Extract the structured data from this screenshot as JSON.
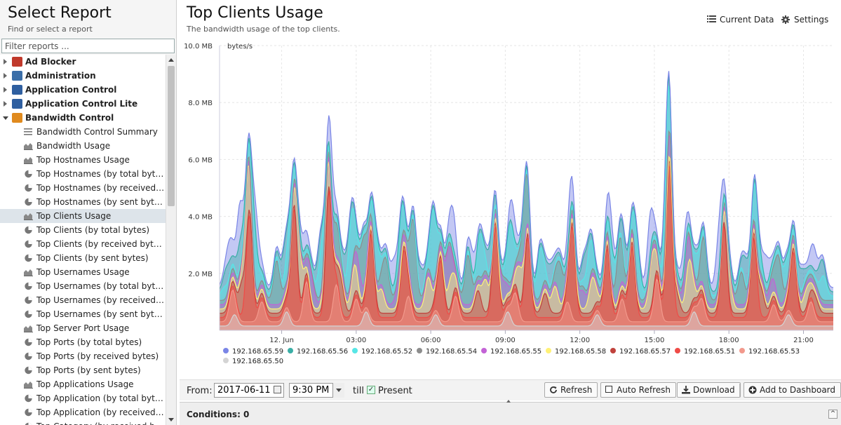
{
  "sidebar": {
    "title": "Select Report",
    "subtitle": "Find or select a report",
    "filter_placeholder": "Filter reports ...",
    "categories": [
      {
        "label": "Ad Blocker",
        "icon": "ad-blocker-icon",
        "color": "#c0392b"
      },
      {
        "label": "Administration",
        "icon": "administration-icon",
        "color": "#3b6ea8"
      },
      {
        "label": "Application Control",
        "icon": "application-control-icon",
        "color": "#2f5fa0"
      },
      {
        "label": "Application Control Lite",
        "icon": "application-control-lite-icon",
        "color": "#2f5fa0"
      },
      {
        "label": "Bandwidth Control",
        "icon": "bandwidth-control-icon",
        "color": "#e08a1e"
      }
    ],
    "items": [
      {
        "label": "Bandwidth Control Summary",
        "icon": "summary-list-icon"
      },
      {
        "label": "Bandwidth Usage",
        "icon": "area-chart-icon"
      },
      {
        "label": "Top Hostnames Usage",
        "icon": "area-chart-icon"
      },
      {
        "label": "Top Hostnames (by total bytes)",
        "icon": "pie-chart-icon"
      },
      {
        "label": "Top Hostnames (by received bytes)",
        "icon": "pie-chart-icon"
      },
      {
        "label": "Top Hostnames (by sent bytes)",
        "icon": "pie-chart-icon"
      },
      {
        "label": "Top Clients Usage",
        "icon": "area-chart-icon"
      },
      {
        "label": "Top Clients (by total bytes)",
        "icon": "pie-chart-icon"
      },
      {
        "label": "Top Clients (by received bytes)",
        "icon": "pie-chart-icon"
      },
      {
        "label": "Top Clients (by sent bytes)",
        "icon": "pie-chart-icon"
      },
      {
        "label": "Top Usernames Usage",
        "icon": "area-chart-icon"
      },
      {
        "label": "Top Usernames (by total bytes)",
        "icon": "pie-chart-icon"
      },
      {
        "label": "Top Usernames (by received bytes)",
        "icon": "pie-chart-icon"
      },
      {
        "label": "Top Usernames (by sent bytes)",
        "icon": "pie-chart-icon"
      },
      {
        "label": "Top Server Port Usage",
        "icon": "area-chart-icon"
      },
      {
        "label": "Top Ports (by total bytes)",
        "icon": "pie-chart-icon"
      },
      {
        "label": "Top Ports (by received bytes)",
        "icon": "pie-chart-icon"
      },
      {
        "label": "Top Ports (by sent bytes)",
        "icon": "pie-chart-icon"
      },
      {
        "label": "Top Applications Usage",
        "icon": "area-chart-icon"
      },
      {
        "label": "Top Application (by total bytes)",
        "icon": "pie-chart-icon"
      },
      {
        "label": "Top Application (by received bytes)",
        "icon": "pie-chart-icon"
      },
      {
        "label": "Top Category (by received bytes)",
        "icon": "pie-chart-icon"
      }
    ],
    "selected_item": "Top Clients Usage"
  },
  "header": {
    "title": "Top Clients Usage",
    "subtitle": "The bandwidth usage of the top clients.",
    "current_data_label": "Current Data",
    "settings_label": "Settings"
  },
  "controls": {
    "from_label": "From:",
    "date_value": "2017-06-11",
    "time_value": "9:30 PM",
    "till_label": "till",
    "present_label": "Present",
    "present_checked": true,
    "refresh_label": "Refresh",
    "auto_refresh_label": "Auto Refresh",
    "download_label": "Download",
    "add_dashboard_label": "Add to Dashboard"
  },
  "conditions": {
    "label": "Conditions: 0"
  },
  "chart_data": {
    "type": "area",
    "stacked": true,
    "ylabel": "bytes/s",
    "ylim": [
      0,
      10
    ],
    "y_ticks": [
      {
        "value": 2,
        "label": "2.0 MB"
      },
      {
        "value": 4,
        "label": "4.0 MB"
      },
      {
        "value": 6,
        "label": "6.0 MB"
      },
      {
        "value": 8,
        "label": "8.0 MB"
      },
      {
        "value": 10,
        "label": "10.0 MB"
      }
    ],
    "x_ticks": [
      {
        "t": 0,
        "label": "12. Jun"
      },
      {
        "t": 3,
        "label": "03:00"
      },
      {
        "t": 6,
        "label": "06:00"
      },
      {
        "t": 9,
        "label": "09:00"
      },
      {
        "t": 12,
        "label": "12:00"
      },
      {
        "t": 15,
        "label": "15:00"
      },
      {
        "t": 18,
        "label": "18:00"
      },
      {
        "t": 21,
        "label": "21:00"
      }
    ],
    "x_range_hours": [
      -2.5,
      22.2
    ],
    "grid": true,
    "legend_position": "bottom",
    "series": [
      {
        "name": "192.168.65.59",
        "color": "#7a85e6",
        "peaks": [
          [
            -2.1,
            0.6
          ],
          [
            -1.7,
            1.2
          ],
          [
            -1.0,
            0.9
          ],
          [
            0.9,
            0.5
          ],
          [
            2.0,
            1.1
          ],
          [
            4.5,
            0.8
          ],
          [
            6.9,
            1.2
          ],
          [
            7.7,
            0.6
          ],
          [
            9.3,
            0.7
          ],
          [
            11.6,
            0.9
          ],
          [
            13.2,
            0.8
          ],
          [
            14.8,
            1.3
          ],
          [
            16.2,
            0.7
          ],
          [
            17.6,
            1.6
          ],
          [
            19.5,
            0.8
          ],
          [
            21.4,
            0.7
          ]
        ]
      },
      {
        "name": "192.168.65.56",
        "color": "#3aaea6",
        "peaks": [
          [
            -2.2,
            0.5
          ],
          [
            -1.7,
            0.8
          ],
          [
            0.1,
            0.9
          ],
          [
            1.5,
            0.6
          ],
          [
            2.6,
            0.7
          ],
          [
            5.6,
            0.7
          ],
          [
            8.4,
            0.8
          ],
          [
            10.8,
            0.6
          ],
          [
            12.2,
            0.7
          ],
          [
            13.8,
            0.8
          ],
          [
            15.4,
            0.7
          ],
          [
            18.7,
            0.8
          ],
          [
            20.9,
            0.6
          ],
          [
            21.7,
            0.5
          ]
        ]
      },
      {
        "name": "192.168.65.52",
        "color": "#57e6e6",
        "peaks": [
          [
            -2.3,
            0.3
          ],
          [
            -1.1,
            1.8
          ],
          [
            0.3,
            1.3
          ],
          [
            1.6,
            1.4
          ],
          [
            2.8,
            2.0
          ],
          [
            3.8,
            1.4
          ],
          [
            4.8,
            1.0
          ],
          [
            6.1,
            2.4
          ],
          [
            8.0,
            1.4
          ],
          [
            9.2,
            1.9
          ],
          [
            10.4,
            1.5
          ],
          [
            12.4,
            1.1
          ],
          [
            13.3,
            0.9
          ],
          [
            14.3,
            1.5
          ],
          [
            15.5,
            1.8
          ],
          [
            16.7,
            0.8
          ],
          [
            19.1,
            1.4
          ],
          [
            20.3,
            0.8
          ],
          [
            21.8,
            0.7
          ]
        ]
      },
      {
        "name": "192.168.65.54",
        "color": "#8d8d8d",
        "peaks": [
          [
            -0.2,
            1.4
          ],
          [
            2.2,
            1.0
          ],
          [
            3.3,
            1.6
          ],
          [
            4.2,
            1.3
          ],
          [
            5.3,
            2.6
          ],
          [
            7.5,
            1.6
          ],
          [
            9.8,
            1.9
          ],
          [
            11.2,
            1.1
          ],
          [
            13.6,
            1.6
          ],
          [
            17.0,
            1.6
          ],
          [
            18.5,
            1.0
          ],
          [
            20.0,
            1.4
          ]
        ]
      },
      {
        "name": "192.168.65.55",
        "color": "#c363d6",
        "peaks": [
          [
            1.2,
            0.7
          ],
          [
            3.1,
            0.6
          ],
          [
            4.7,
            0.5
          ],
          [
            6.7,
            1.2
          ],
          [
            8.9,
            0.6
          ],
          [
            12.1,
            0.5
          ],
          [
            15.6,
            0.6
          ],
          [
            16.3,
            0.9
          ],
          [
            19.7,
            0.4
          ]
        ]
      },
      {
        "name": "192.168.65.58",
        "color": "#fff176",
        "peaks": [
          [
            -1.4,
            1.8
          ],
          [
            0.7,
            1.6
          ],
          [
            1.8,
            1.0
          ],
          [
            2.9,
            0.9
          ],
          [
            4.0,
            0.7
          ],
          [
            5.9,
            1.1
          ],
          [
            6.8,
            0.9
          ],
          [
            8.2,
            1.0
          ],
          [
            9.6,
            1.1
          ],
          [
            11.0,
            0.8
          ],
          [
            12.5,
            1.0
          ],
          [
            14.9,
            1.5
          ],
          [
            16.4,
            1.6
          ],
          [
            18.0,
            0.9
          ],
          [
            21.1,
            0.5
          ]
        ]
      },
      {
        "name": "192.168.65.57",
        "color": "#c0423c",
        "peaks": [
          [
            -1.6,
            1.0
          ],
          [
            2.4,
            0.9
          ],
          [
            7.9,
            0.8
          ],
          [
            10.6,
            0.7
          ],
          [
            15.9,
            0.6
          ],
          [
            19.3,
            0.8
          ],
          [
            21.5,
            0.4
          ]
        ]
      },
      {
        "name": "192.168.65.51",
        "color": "#ef4b47",
        "peaks": [
          [
            -1.3,
            3.6
          ],
          [
            0.5,
            3.8
          ],
          [
            1.9,
            4.4
          ],
          [
            3.6,
            2.8
          ],
          [
            4.9,
            2.1
          ],
          [
            6.4,
            1.9
          ],
          [
            8.6,
            3.2
          ],
          [
            9.9,
            2.8
          ],
          [
            11.7,
            3.0
          ],
          [
            13.1,
            2.4
          ],
          [
            14.1,
            2.5
          ],
          [
            15.6,
            5.4
          ],
          [
            17.8,
            3.2
          ],
          [
            19.0,
            2.8
          ],
          [
            20.6,
            2.2
          ]
        ]
      },
      {
        "name": "192.168.65.53",
        "color": "#f2998c",
        "peaks": [
          [
            -2.0,
            0.8
          ],
          [
            -0.8,
            0.7
          ],
          [
            1.0,
            1.4
          ],
          [
            2.2,
            1.3
          ],
          [
            3.0,
            0.8
          ],
          [
            5.1,
            0.9
          ],
          [
            7.0,
            0.9
          ],
          [
            9.4,
            1.0
          ],
          [
            11.5,
            0.7
          ],
          [
            13.7,
            0.8
          ],
          [
            15.1,
            1.5
          ],
          [
            16.9,
            0.8
          ],
          [
            19.8,
            0.6
          ],
          [
            21.3,
            0.7
          ]
        ]
      },
      {
        "name": "192.168.65.50",
        "color": "#d4d4d4",
        "peaks": [
          [
            -1.9,
            0.4
          ],
          [
            0.2,
            0.5
          ],
          [
            3.4,
            0.5
          ],
          [
            6.2,
            0.4
          ],
          [
            9.1,
            0.5
          ],
          [
            12.7,
            0.4
          ],
          [
            16.6,
            0.5
          ],
          [
            20.4,
            0.4
          ]
        ]
      }
    ]
  }
}
